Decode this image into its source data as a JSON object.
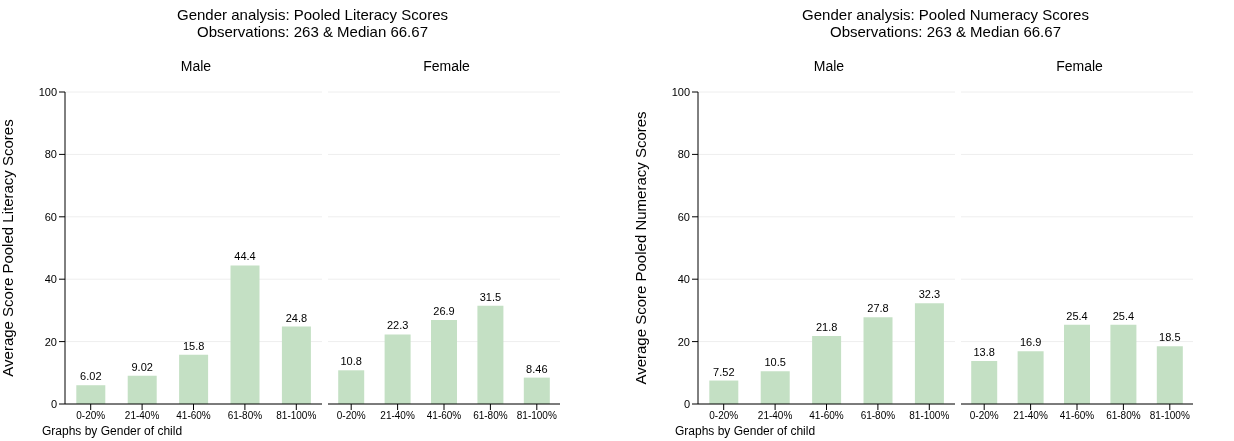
{
  "chart_data": [
    {
      "type": "bar",
      "title": "Gender analysis: Pooled Literacy Scores",
      "subtitle": "Observations: 263 & Median 66.67",
      "ylabel": "Average Score Pooled Literacy Scores",
      "annotations": [
        "Male",
        "Graphs by Gender of child"
      ],
      "categories": [
        "0-20%",
        "21-40%",
        "41-60%",
        "61-80%",
        "81-100%"
      ],
      "values": [
        6.02,
        9.02,
        15.8,
        44.4,
        24.8
      ],
      "color": "#c4e0c4",
      "ylim": [
        0,
        100
      ],
      "yticks": [
        0,
        20,
        40,
        60,
        80,
        100
      ],
      "grid": "y",
      "data_labels": true
    },
    {
      "type": "bar",
      "annotations": [
        "Female"
      ],
      "categories": [
        "0-20%",
        "21-40%",
        "41-60%",
        "61-80%",
        "81-100%"
      ],
      "values": [
        10.8,
        22.3,
        26.9,
        31.5,
        8.46
      ],
      "color": "#c4e0c4",
      "ylim": [
        0,
        100
      ],
      "yticks": [
        0,
        20,
        40,
        60,
        80,
        100
      ],
      "grid": "y",
      "data_labels": true,
      "tick_labels": "x"
    },
    {
      "type": "bar",
      "title": "Gender analysis: Pooled Numeracy Scores",
      "subtitle": "Observations: 263 & Median 66.67",
      "ylabel": "Average Score Pooled Numeracy Scores",
      "annotations": [
        "Male",
        "Graphs by Gender of child"
      ],
      "categories": [
        "0-20%",
        "21-40%",
        "41-60%",
        "61-80%",
        "81-100%"
      ],
      "values": [
        7.52,
        10.5,
        21.8,
        27.8,
        32.3
      ],
      "color": "#c4e0c4",
      "ylim": [
        0,
        100
      ],
      "yticks": [
        0,
        20,
        40,
        60,
        80,
        100
      ],
      "grid": "y",
      "data_labels": true
    },
    {
      "type": "bar",
      "annotations": [
        "Female"
      ],
      "categories": [
        "0-20%",
        "21-40%",
        "41-60%",
        "61-80%",
        "81-100%"
      ],
      "values": [
        13.8,
        16.9,
        25.4,
        25.4,
        18.5
      ],
      "color": "#c4e0c4",
      "ylim": [
        0,
        100
      ],
      "yticks": [
        0,
        20,
        40,
        60,
        80,
        100
      ],
      "grid": "y",
      "data_labels": true,
      "tick_labels": "x"
    }
  ]
}
